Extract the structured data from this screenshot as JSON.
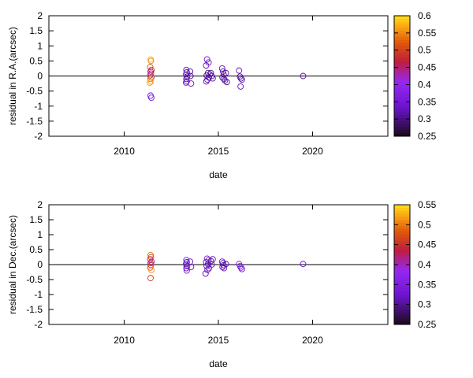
{
  "chart_data": [
    {
      "type": "scatter",
      "ylabel": "residual in R.A.(arcsec)",
      "xlabel": "date",
      "xlim": [
        2006,
        2024
      ],
      "ylim": [
        -2,
        2
      ],
      "xticks": [
        "2010",
        "2015",
        "2020"
      ],
      "yticks": [
        "-2",
        "-1.5",
        "-1",
        "-0.5",
        "0",
        "0.5",
        "1",
        "1.5",
        "2"
      ],
      "colorbar": {
        "range": [
          0.25,
          0.6
        ],
        "ticks": [
          "0.6",
          "0.55",
          "0.5",
          "0.45",
          "0.4",
          "0.35",
          "0.3",
          "0.25"
        ]
      },
      "zero_line": true,
      "points": [
        {
          "x": 2011.4,
          "y": 0.55,
          "c": 0.58
        },
        {
          "x": 2011.42,
          "y": 0.5,
          "c": 0.55
        },
        {
          "x": 2011.38,
          "y": 0.3,
          "c": 0.52
        },
        {
          "x": 2011.45,
          "y": 0.2,
          "c": 0.48
        },
        {
          "x": 2011.4,
          "y": 0.15,
          "c": 0.46
        },
        {
          "x": 2011.42,
          "y": 0.08,
          "c": 0.44
        },
        {
          "x": 2011.38,
          "y": 0.02,
          "c": 0.42
        },
        {
          "x": 2011.44,
          "y": -0.05,
          "c": 0.5
        },
        {
          "x": 2011.4,
          "y": -0.1,
          "c": 0.54
        },
        {
          "x": 2011.42,
          "y": -0.18,
          "c": 0.57
        },
        {
          "x": 2011.36,
          "y": -0.22,
          "c": 0.56
        },
        {
          "x": 2011.4,
          "y": -0.65,
          "c": 0.36
        },
        {
          "x": 2011.44,
          "y": -0.72,
          "c": 0.34
        },
        {
          "x": 2013.3,
          "y": 0.2,
          "c": 0.33
        },
        {
          "x": 2013.32,
          "y": 0.12,
          "c": 0.31
        },
        {
          "x": 2013.28,
          "y": 0.05,
          "c": 0.34
        },
        {
          "x": 2013.34,
          "y": -0.02,
          "c": 0.32
        },
        {
          "x": 2013.3,
          "y": -0.1,
          "c": 0.3
        },
        {
          "x": 2013.32,
          "y": -0.18,
          "c": 0.33
        },
        {
          "x": 2013.28,
          "y": -0.22,
          "c": 0.35
        },
        {
          "x": 2013.5,
          "y": 0.15,
          "c": 0.32
        },
        {
          "x": 2013.52,
          "y": 0.0,
          "c": 0.31
        },
        {
          "x": 2013.55,
          "y": -0.25,
          "c": 0.33
        },
        {
          "x": 2014.4,
          "y": 0.55,
          "c": 0.34
        },
        {
          "x": 2014.48,
          "y": 0.45,
          "c": 0.33
        },
        {
          "x": 2014.35,
          "y": 0.35,
          "c": 0.32
        },
        {
          "x": 2014.45,
          "y": 0.1,
          "c": 0.31
        },
        {
          "x": 2014.38,
          "y": 0.02,
          "c": 0.3
        },
        {
          "x": 2014.5,
          "y": -0.05,
          "c": 0.32
        },
        {
          "x": 2014.42,
          "y": -0.12,
          "c": 0.33
        },
        {
          "x": 2014.36,
          "y": -0.18,
          "c": 0.31
        },
        {
          "x": 2014.6,
          "y": 0.1,
          "c": 0.3
        },
        {
          "x": 2014.65,
          "y": 0.0,
          "c": 0.32
        },
        {
          "x": 2014.7,
          "y": -0.08,
          "c": 0.31
        },
        {
          "x": 2014.55,
          "y": 0.05,
          "c": 0.33
        },
        {
          "x": 2015.2,
          "y": 0.25,
          "c": 0.33
        },
        {
          "x": 2015.25,
          "y": 0.15,
          "c": 0.32
        },
        {
          "x": 2015.28,
          "y": 0.05,
          "c": 0.31
        },
        {
          "x": 2015.22,
          "y": -0.05,
          "c": 0.3
        },
        {
          "x": 2015.3,
          "y": -0.1,
          "c": 0.32
        },
        {
          "x": 2015.35,
          "y": -0.15,
          "c": 0.33
        },
        {
          "x": 2015.4,
          "y": 0.1,
          "c": 0.31
        },
        {
          "x": 2015.45,
          "y": -0.2,
          "c": 0.3
        },
        {
          "x": 2016.1,
          "y": 0.18,
          "c": 0.32
        },
        {
          "x": 2016.15,
          "y": -0.02,
          "c": 0.31
        },
        {
          "x": 2016.2,
          "y": -0.08,
          "c": 0.3
        },
        {
          "x": 2016.25,
          "y": -0.12,
          "c": 0.33
        },
        {
          "x": 2016.18,
          "y": -0.35,
          "c": 0.32
        },
        {
          "x": 2019.5,
          "y": 0.0,
          "c": 0.32
        }
      ]
    },
    {
      "type": "scatter",
      "ylabel": "residual in Dec.(arcsec)",
      "xlabel": "date",
      "xlim": [
        2006,
        2024
      ],
      "ylim": [
        -2,
        2
      ],
      "xticks": [
        "2010",
        "2015",
        "2020"
      ],
      "yticks": [
        "-2",
        "-1.5",
        "-1",
        "-0.5",
        "0",
        "0.5",
        "1",
        "1.5",
        "2"
      ],
      "colorbar": {
        "range": [
          0.25,
          0.55
        ],
        "ticks": [
          "0.55",
          "0.5",
          "0.45",
          "0.4",
          "0.35",
          "0.3",
          "0.25"
        ]
      },
      "zero_line": true,
      "points": [
        {
          "x": 2011.4,
          "y": 0.32,
          "c": 0.5
        },
        {
          "x": 2011.42,
          "y": 0.25,
          "c": 0.47
        },
        {
          "x": 2011.38,
          "y": 0.18,
          "c": 0.44
        },
        {
          "x": 2011.45,
          "y": 0.1,
          "c": 0.42
        },
        {
          "x": 2011.4,
          "y": 0.05,
          "c": 0.4
        },
        {
          "x": 2011.42,
          "y": -0.02,
          "c": 0.45
        },
        {
          "x": 2011.38,
          "y": -0.1,
          "c": 0.48
        },
        {
          "x": 2011.44,
          "y": -0.18,
          "c": 0.51
        },
        {
          "x": 2011.4,
          "y": -0.45,
          "c": 0.46
        },
        {
          "x": 2013.3,
          "y": 0.15,
          "c": 0.33
        },
        {
          "x": 2013.32,
          "y": 0.08,
          "c": 0.31
        },
        {
          "x": 2013.28,
          "y": 0.02,
          "c": 0.34
        },
        {
          "x": 2013.34,
          "y": -0.05,
          "c": 0.32
        },
        {
          "x": 2013.3,
          "y": -0.12,
          "c": 0.3
        },
        {
          "x": 2013.32,
          "y": -0.2,
          "c": 0.33
        },
        {
          "x": 2013.5,
          "y": 0.1,
          "c": 0.32
        },
        {
          "x": 2013.55,
          "y": -0.08,
          "c": 0.31
        },
        {
          "x": 2014.4,
          "y": 0.2,
          "c": 0.34
        },
        {
          "x": 2014.48,
          "y": 0.15,
          "c": 0.33
        },
        {
          "x": 2014.35,
          "y": 0.08,
          "c": 0.32
        },
        {
          "x": 2014.45,
          "y": 0.02,
          "c": 0.31
        },
        {
          "x": 2014.38,
          "y": -0.05,
          "c": 0.3
        },
        {
          "x": 2014.5,
          "y": -0.12,
          "c": 0.32
        },
        {
          "x": 2014.42,
          "y": -0.18,
          "c": 0.33
        },
        {
          "x": 2014.32,
          "y": -0.3,
          "c": 0.31
        },
        {
          "x": 2014.6,
          "y": 0.12,
          "c": 0.3
        },
        {
          "x": 2014.65,
          "y": 0.0,
          "c": 0.32
        },
        {
          "x": 2014.7,
          "y": 0.18,
          "c": 0.31
        },
        {
          "x": 2015.2,
          "y": 0.1,
          "c": 0.33
        },
        {
          "x": 2015.25,
          "y": 0.05,
          "c": 0.32
        },
        {
          "x": 2015.28,
          "y": -0.02,
          "c": 0.31
        },
        {
          "x": 2015.22,
          "y": -0.08,
          "c": 0.3
        },
        {
          "x": 2015.3,
          "y": -0.12,
          "c": 0.32
        },
        {
          "x": 2015.4,
          "y": 0.02,
          "c": 0.31
        },
        {
          "x": 2016.1,
          "y": 0.02,
          "c": 0.36
        },
        {
          "x": 2016.15,
          "y": -0.05,
          "c": 0.38
        },
        {
          "x": 2016.2,
          "y": -0.1,
          "c": 0.33
        },
        {
          "x": 2016.25,
          "y": -0.15,
          "c": 0.32
        },
        {
          "x": 2019.5,
          "y": 0.02,
          "c": 0.33
        }
      ]
    }
  ]
}
